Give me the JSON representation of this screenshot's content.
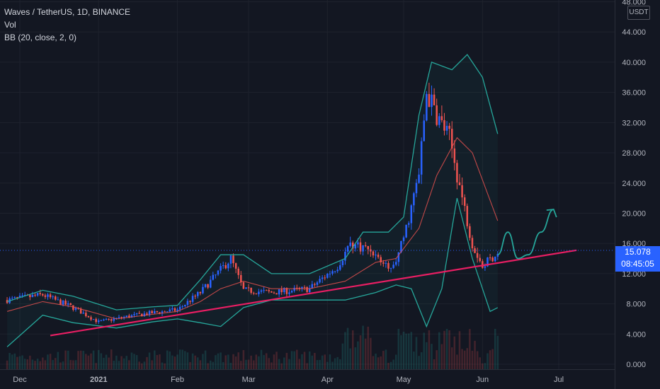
{
  "header": {
    "symbol_line": "Waves / TetherUS, 1D, BINANCE",
    "vol_label": "Vol",
    "bb_label": "BB (20, close, 2, 0)"
  },
  "currency_label": "USDT",
  "last_price": {
    "value": "15.078",
    "countdown": "08:45:05"
  },
  "colors": {
    "background": "#131722",
    "up": "#2962ff",
    "down": "#ef5350",
    "bb_bands": "#26a69a",
    "bb_basis": "#ef5350",
    "trendline": "#e91e63",
    "projection": "#26a69a",
    "axis_text": "#b2b5be"
  },
  "chart_data": {
    "type": "candlestick",
    "y_ticks": [
      "48.000",
      "44.000",
      "40.000",
      "36.000",
      "32.000",
      "28.000",
      "24.000",
      "20.000",
      "16.000",
      "12.000",
      "8.000",
      "4.000",
      "0.000"
    ],
    "ylim": [
      0,
      48
    ],
    "x_ticks": [
      "Dec",
      "2021",
      "Feb",
      "Mar",
      "Apr",
      "May",
      "Jun",
      "Jul"
    ],
    "price_path": [
      [
        "2020-11-26",
        8.5
      ],
      [
        "2020-12-10",
        9.2
      ],
      [
        "2020-12-22",
        7.5
      ],
      [
        "2021-01-01",
        5.6
      ],
      [
        "2021-01-12",
        6.3
      ],
      [
        "2021-01-22",
        6.8
      ],
      [
        "2021-02-01",
        7.2
      ],
      [
        "2021-02-10",
        9.5
      ],
      [
        "2021-02-18",
        12.5
      ],
      [
        "2021-02-22",
        14.0
      ],
      [
        "2021-02-27",
        9.8
      ],
      [
        "2021-03-10",
        9.5
      ],
      [
        "2021-03-25",
        10.0
      ],
      [
        "2021-04-05",
        13.0
      ],
      [
        "2021-04-10",
        16.0
      ],
      [
        "2021-04-18",
        15.2
      ],
      [
        "2021-04-25",
        12.5
      ],
      [
        "2021-04-29",
        14.5
      ],
      [
        "2021-05-02",
        18.0
      ],
      [
        "2021-05-07",
        25.0
      ],
      [
        "2021-05-10",
        36.0
      ],
      [
        "2021-05-14",
        33.0
      ],
      [
        "2021-05-19",
        30.0
      ],
      [
        "2021-05-24",
        22.0
      ],
      [
        "2021-05-28",
        16.0
      ],
      [
        "2021-06-01",
        13.0
      ],
      [
        "2021-06-05",
        14.2
      ],
      [
        "2021-06-07",
        15.078
      ]
    ],
    "bb_upper": [
      [
        "2020-11-26",
        8.3
      ],
      [
        "2020-12-10",
        9.8
      ],
      [
        "2020-12-22",
        9.0
      ],
      [
        "2021-01-08",
        7.2
      ],
      [
        "2021-01-22",
        7.6
      ],
      [
        "2021-02-01",
        7.8
      ],
      [
        "2021-02-10",
        11.2
      ],
      [
        "2021-02-18",
        14.5
      ],
      [
        "2021-02-27",
        14.5
      ],
      [
        "2021-03-10",
        12.0
      ],
      [
        "2021-03-25",
        12.0
      ],
      [
        "2021-04-08",
        14.0
      ],
      [
        "2021-04-15",
        17.5
      ],
      [
        "2021-04-25",
        17.5
      ],
      [
        "2021-05-01",
        19.5
      ],
      [
        "2021-05-07",
        33.0
      ],
      [
        "2021-05-12",
        40.0
      ],
      [
        "2021-05-20",
        39.0
      ],
      [
        "2021-05-26",
        41.0
      ],
      [
        "2021-06-01",
        38.0
      ],
      [
        "2021-06-07",
        30.5
      ]
    ],
    "bb_basis": [
      [
        "2020-11-26",
        7.0
      ],
      [
        "2020-12-10",
        8.3
      ],
      [
        "2020-12-22",
        7.6
      ],
      [
        "2021-01-08",
        6.0
      ],
      [
        "2021-01-22",
        6.6
      ],
      [
        "2021-02-01",
        7.0
      ],
      [
        "2021-02-10",
        8.3
      ],
      [
        "2021-02-18",
        10.0
      ],
      [
        "2021-02-27",
        11.0
      ],
      [
        "2021-03-10",
        10.0
      ],
      [
        "2021-03-25",
        10.0
      ],
      [
        "2021-04-08",
        11.0
      ],
      [
        "2021-04-20",
        13.5
      ],
      [
        "2021-04-28",
        14.0
      ],
      [
        "2021-05-07",
        18.0
      ],
      [
        "2021-05-14",
        25.0
      ],
      [
        "2021-05-22",
        30.0
      ],
      [
        "2021-05-28",
        28.0
      ],
      [
        "2021-06-07",
        19.0
      ]
    ],
    "bb_lower": [
      [
        "2020-11-26",
        2.3
      ],
      [
        "2020-12-10",
        6.5
      ],
      [
        "2020-12-22",
        5.5
      ],
      [
        "2021-01-08",
        4.8
      ],
      [
        "2021-01-22",
        5.6
      ],
      [
        "2021-02-01",
        6.0
      ],
      [
        "2021-02-10",
        5.5
      ],
      [
        "2021-02-18",
        5.0
      ],
      [
        "2021-02-27",
        7.5
      ],
      [
        "2021-03-10",
        8.5
      ],
      [
        "2021-03-25",
        8.5
      ],
      [
        "2021-04-08",
        8.5
      ],
      [
        "2021-04-20",
        9.5
      ],
      [
        "2021-04-28",
        10.5
      ],
      [
        "2021-05-04",
        10.0
      ],
      [
        "2021-05-10",
        5.0
      ],
      [
        "2021-05-16",
        10.0
      ],
      [
        "2021-05-22",
        22.0
      ],
      [
        "2021-05-28",
        14.0
      ],
      [
        "2021-06-04",
        7.0
      ],
      [
        "2021-06-07",
        7.5
      ]
    ],
    "trendline": [
      [
        "2020-12-13",
        3.8
      ],
      [
        "2021-07-08",
        15.1
      ]
    ],
    "projection": [
      [
        "2021-06-07",
        14.5
      ],
      [
        "2021-06-11",
        17.5
      ],
      [
        "2021-06-15",
        14.0
      ],
      [
        "2021-06-19",
        14.5
      ],
      [
        "2021-06-24",
        17.5
      ],
      [
        "2021-06-29",
        20.5
      ]
    ]
  }
}
